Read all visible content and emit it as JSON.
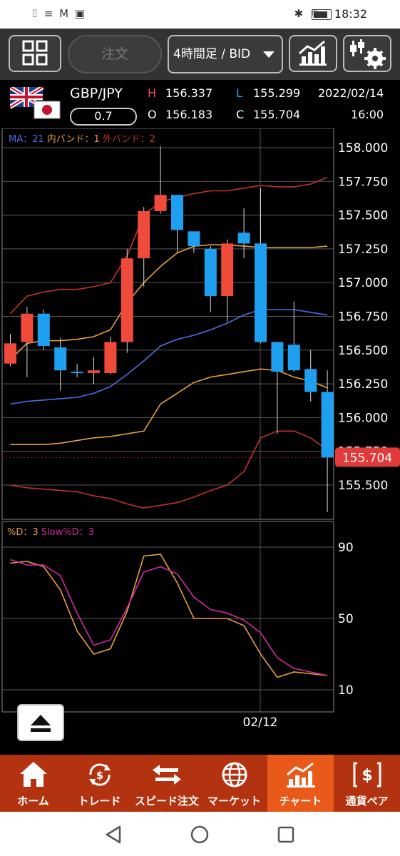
{
  "status_bar": {
    "time": "18:32",
    "left_icons": "⌷ ≡ M ▣"
  },
  "toolbar": {
    "order_label": "注文",
    "period_label": "4時間足 / BID"
  },
  "quote": {
    "pair": "GBP/JPY",
    "spread": "0.7",
    "high_label": "H",
    "high": "156.337",
    "low_label": "L",
    "low": "155.299",
    "open_label": "O",
    "open": "156.183",
    "close_label": "C",
    "close": "155.704",
    "date": "2022/02/14",
    "time": "16:00"
  },
  "main_legend": {
    "ma": "MA：21",
    "inner": "内バンド：1",
    "outer": "外バンド：2"
  },
  "sub_legend": {
    "d": "%D：3",
    "slowd": "Slow%D：3"
  },
  "price_axis": [
    "158.000",
    "157.750",
    "157.500",
    "157.250",
    "157.000",
    "156.750",
    "156.500",
    "156.250",
    "156.000",
    "155.750",
    "155.500"
  ],
  "current_price_tag": "155.704",
  "osc_axis": [
    "90",
    "50",
    "10"
  ],
  "date_label": "02/12",
  "colors": {
    "up": "#f04a3a",
    "down": "#1f9fef",
    "ma": "#4a6ee0",
    "inner": "#e8a040",
    "outer": "#c0342a",
    "d": "#e8a040",
    "slowd": "#d02aa0",
    "nav_bg": "#b3320f",
    "nav_active": "#e8591a"
  },
  "chart_data": {
    "type": "candlestick",
    "y_range": [
      155.3,
      158.05
    ],
    "candles": [
      {
        "o": 156.4,
        "h": 156.62,
        "l": 156.38,
        "c": 156.55
      },
      {
        "o": 156.56,
        "h": 156.82,
        "l": 156.3,
        "c": 156.77
      },
      {
        "o": 156.77,
        "h": 156.8,
        "l": 156.5,
        "c": 156.53
      },
      {
        "o": 156.52,
        "h": 156.59,
        "l": 156.2,
        "c": 156.35
      },
      {
        "o": 156.34,
        "h": 156.4,
        "l": 156.3,
        "c": 156.33
      },
      {
        "o": 156.33,
        "h": 156.45,
        "l": 156.25,
        "c": 156.35
      },
      {
        "o": 156.33,
        "h": 156.6,
        "l": 156.32,
        "c": 156.56
      },
      {
        "o": 156.56,
        "h": 157.25,
        "l": 156.48,
        "c": 157.18
      },
      {
        "o": 157.18,
        "h": 157.56,
        "l": 156.97,
        "c": 157.53
      },
      {
        "o": 157.53,
        "h": 158.01,
        "l": 157.51,
        "c": 157.65
      },
      {
        "o": 157.65,
        "h": 157.65,
        "l": 157.22,
        "c": 157.39
      },
      {
        "o": 157.38,
        "h": 157.38,
        "l": 157.22,
        "c": 157.27
      },
      {
        "o": 157.25,
        "h": 157.27,
        "l": 156.78,
        "c": 156.9
      },
      {
        "o": 156.9,
        "h": 157.32,
        "l": 156.71,
        "c": 157.29
      },
      {
        "o": 157.37,
        "h": 157.55,
        "l": 157.18,
        "c": 157.29
      },
      {
        "o": 157.29,
        "h": 157.7,
        "l": 156.55,
        "c": 156.56
      },
      {
        "o": 156.56,
        "h": 156.56,
        "l": 155.88,
        "c": 156.34
      },
      {
        "o": 156.54,
        "h": 156.86,
        "l": 156.34,
        "c": 156.35
      },
      {
        "o": 156.36,
        "h": 156.5,
        "l": 156.12,
        "c": 156.19
      },
      {
        "o": 156.19,
        "h": 156.35,
        "l": 155.3,
        "c": 155.704
      }
    ],
    "ma": [
      156.1,
      156.12,
      156.13,
      156.14,
      156.15,
      156.18,
      156.23,
      156.32,
      156.42,
      156.53,
      156.58,
      156.61,
      156.65,
      156.7,
      156.76,
      156.8,
      156.8,
      156.8,
      156.78,
      156.76
    ],
    "inner_upper": [
      156.43,
      156.55,
      156.57,
      156.57,
      156.58,
      156.6,
      156.65,
      156.85,
      157.0,
      157.12,
      157.22,
      157.27,
      157.28,
      157.28,
      157.27,
      157.26,
      157.26,
      157.26,
      157.26,
      157.27
    ],
    "inner_lower": [
      155.8,
      155.8,
      155.8,
      155.81,
      155.83,
      155.85,
      155.86,
      155.88,
      155.9,
      156.1,
      156.18,
      156.26,
      156.3,
      156.32,
      156.34,
      156.36,
      156.35,
      156.3,
      156.27,
      156.22
    ],
    "outer_upper": [
      156.77,
      156.9,
      156.93,
      156.95,
      156.95,
      156.97,
      157.0,
      157.2,
      157.5,
      157.6,
      157.63,
      157.66,
      157.68,
      157.68,
      157.7,
      157.72,
      157.71,
      157.71,
      157.73,
      157.78
    ],
    "outer_lower": [
      155.5,
      155.48,
      155.47,
      155.46,
      155.45,
      155.42,
      155.4,
      155.36,
      155.33,
      155.35,
      155.37,
      155.41,
      155.46,
      155.5,
      155.6,
      155.85,
      155.9,
      155.9,
      155.85,
      155.76
    ],
    "osc_range": [
      0,
      100
    ],
    "pct_d": [
      81,
      82,
      79,
      66,
      43,
      30,
      33,
      54,
      85,
      86,
      70,
      50,
      50,
      50,
      46,
      30,
      17,
      20,
      19,
      18
    ],
    "slow_pct_d": [
      83,
      80,
      80,
      74,
      53,
      35,
      38,
      56,
      76,
      79,
      75,
      62,
      55,
      53,
      49,
      42,
      28,
      22,
      20,
      18
    ]
  },
  "nav": [
    {
      "label": "ホーム",
      "icon": "home-icon"
    },
    {
      "label": "トレード",
      "icon": "trade-icon"
    },
    {
      "label": "スピード注文",
      "icon": "speed-order-icon"
    },
    {
      "label": "マーケット",
      "icon": "market-icon"
    },
    {
      "label": "チャート",
      "icon": "chart-icon"
    },
    {
      "label": "通貨ペア",
      "icon": "currency-pair-icon"
    }
  ]
}
